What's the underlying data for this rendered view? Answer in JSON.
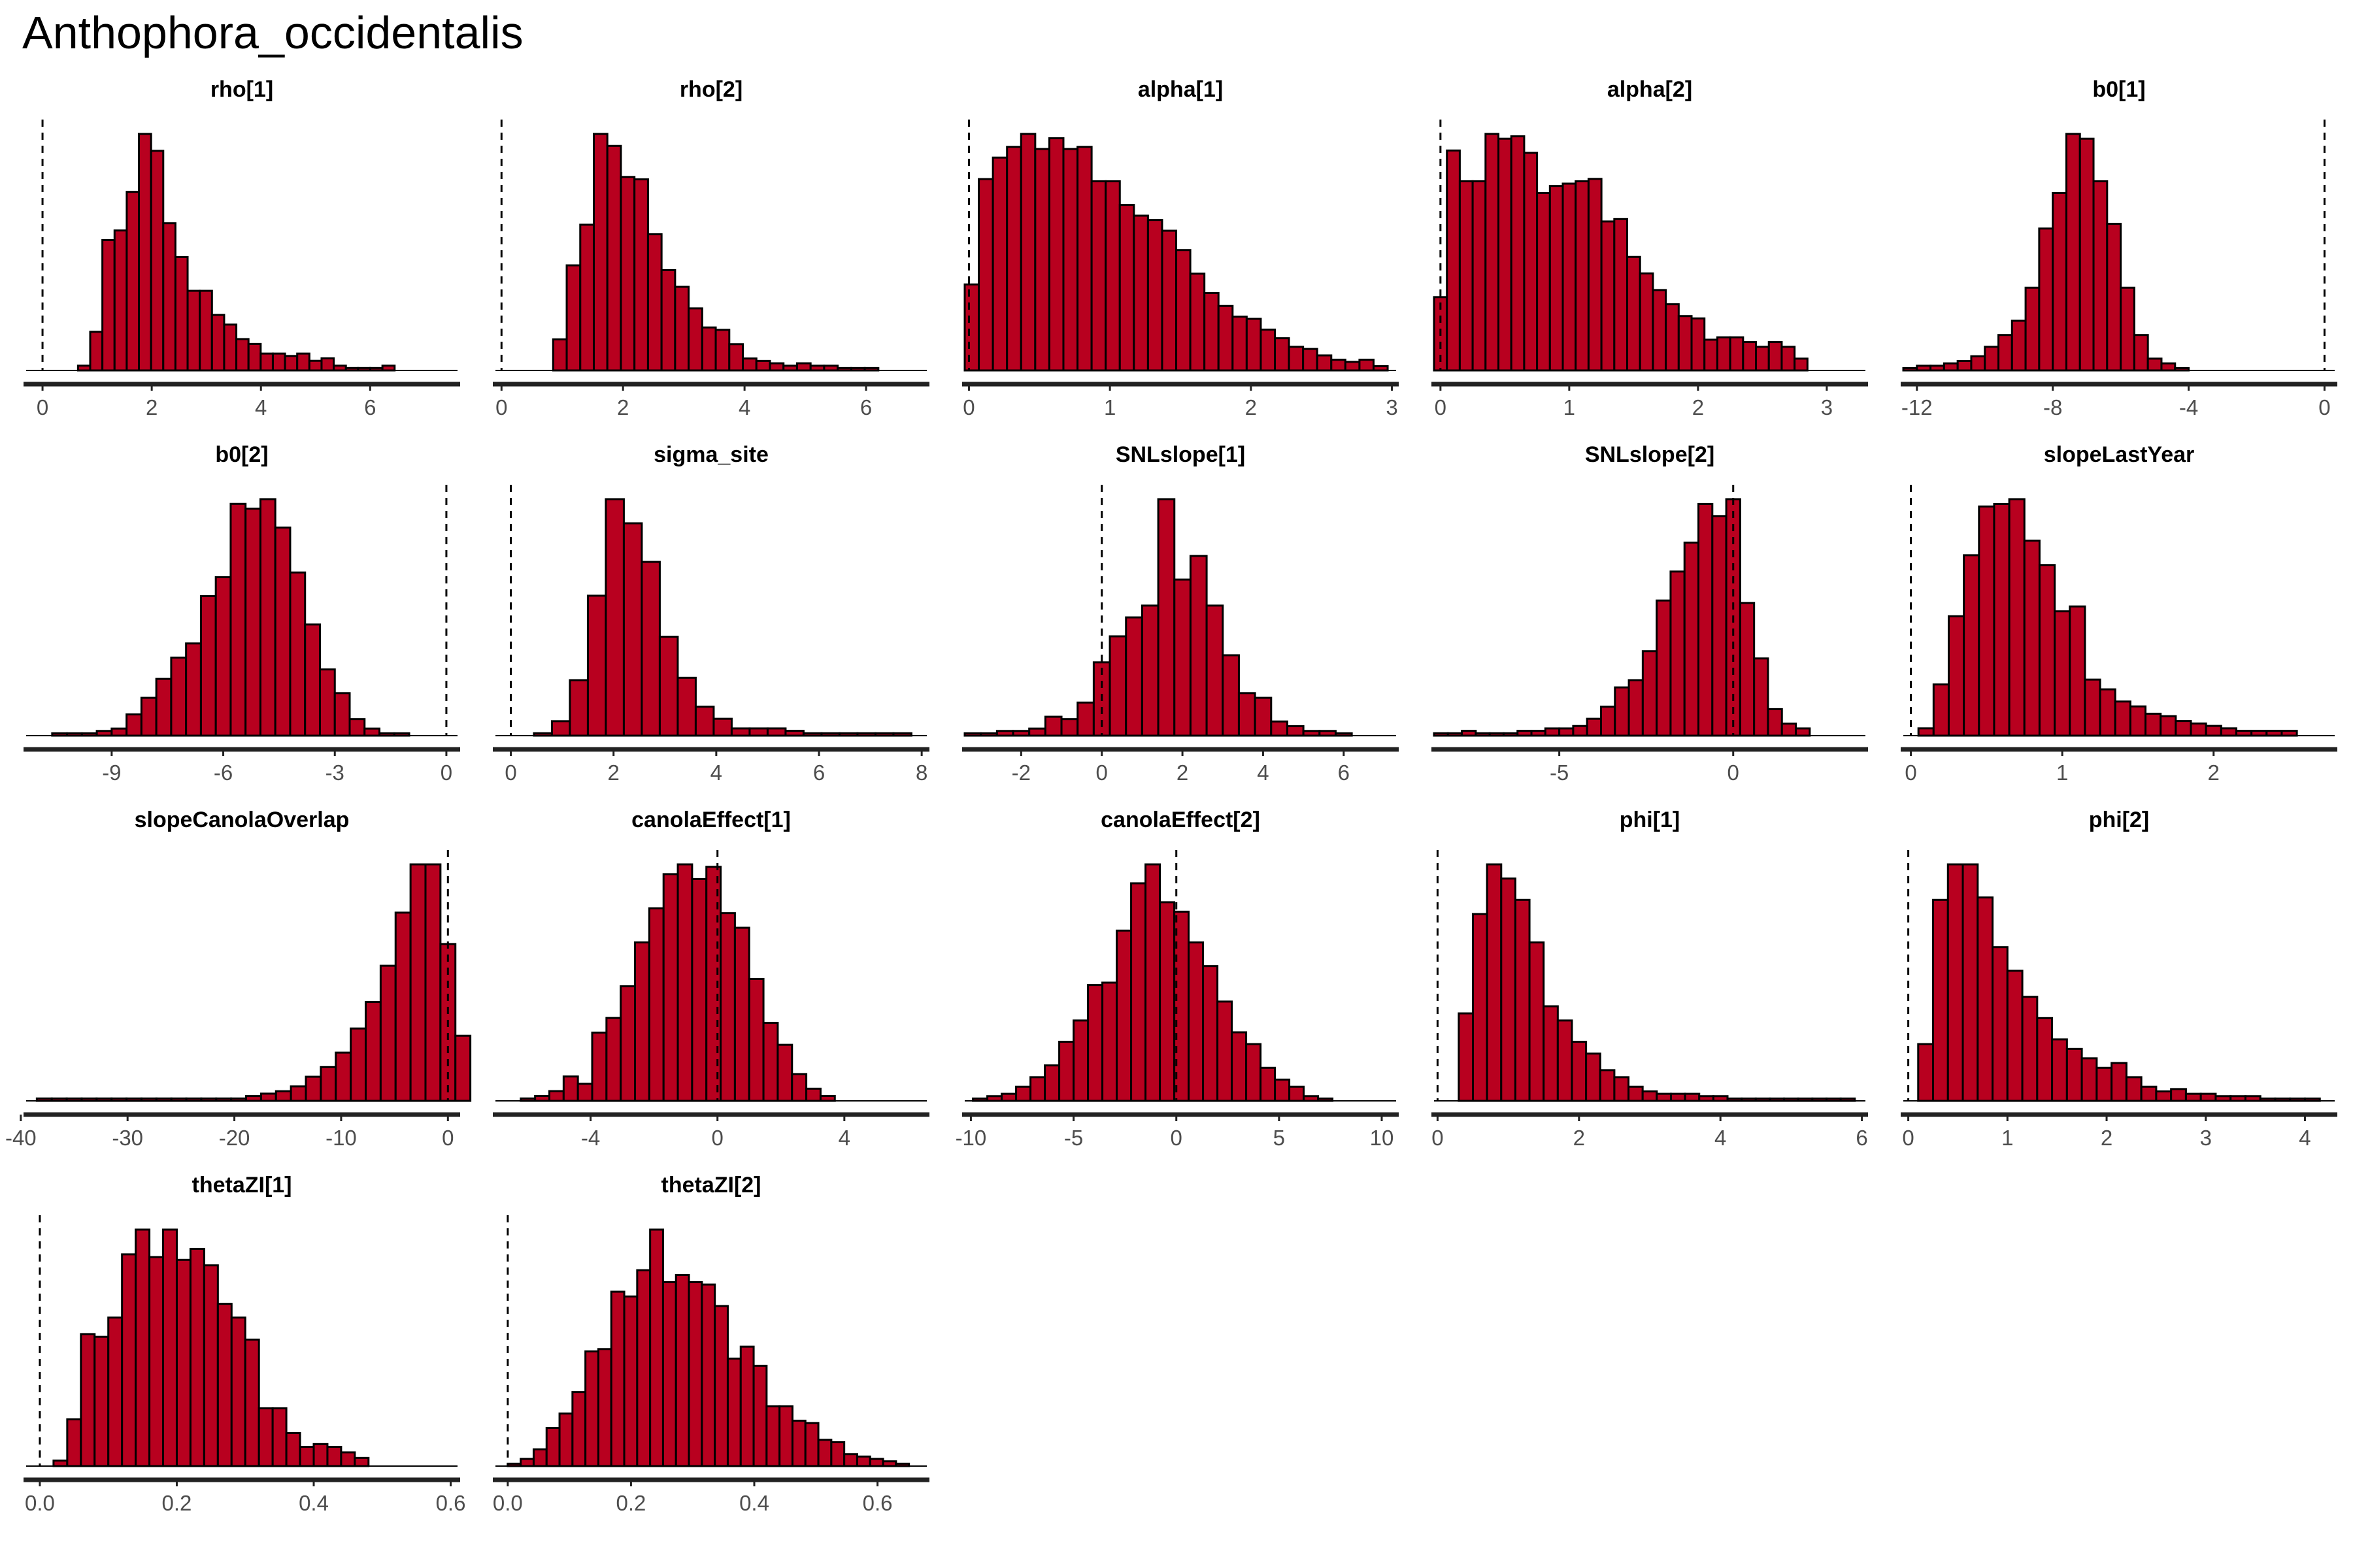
{
  "title": "Anthophora_occidentalis",
  "colors": {
    "bar_fill": "#B8001F",
    "bar_stroke": "#000000",
    "axis": "#222222",
    "tick_text": "#4d4d4d",
    "ref_line": "#000000"
  },
  "chart_data": [
    {
      "type": "bar",
      "title": "rho[1]",
      "xlim": [
        -0.3,
        7.6
      ],
      "ticks": [
        "0",
        "2",
        "4",
        "6"
      ],
      "tick_values": [
        0,
        2,
        4,
        6
      ],
      "ref": 0,
      "bin_start": 0.65,
      "bin_width": 0.223,
      "values": [
        2,
        16,
        54,
        58,
        74,
        98,
        91,
        61,
        47,
        33,
        33,
        23,
        19,
        13,
        11,
        7,
        7,
        6,
        7,
        4,
        5,
        2,
        1,
        1,
        1,
        2
      ]
    },
    {
      "type": "bar",
      "title": "rho[2]",
      "xlim": [
        -0.1,
        7.0
      ],
      "ticks": [
        "0",
        "2",
        "4",
        "6"
      ],
      "tick_values": [
        0,
        2,
        4,
        6
      ],
      "ref": 0,
      "bin_start": 0.85,
      "bin_width": 0.223,
      "values": [
        13,
        44,
        61,
        99,
        94,
        81,
        80,
        57,
        42,
        35,
        26,
        18,
        17,
        11,
        5,
        4,
        3,
        2,
        3,
        2,
        2,
        1,
        1,
        1
      ]
    },
    {
      "type": "bar",
      "title": "alpha[1]",
      "xlim": [
        -0.03,
        3.03
      ],
      "ticks": [
        "0",
        "1",
        "2",
        "3"
      ],
      "tick_values": [
        0,
        1,
        2,
        3
      ],
      "ref": 0,
      "bin_start": -0.03,
      "bin_width": 0.1,
      "values": [
        40,
        89,
        99,
        104,
        110,
        103,
        108,
        103,
        104,
        88,
        88,
        77,
        72,
        70,
        65,
        56,
        45,
        36,
        30,
        25,
        24,
        19,
        15,
        11,
        10,
        7,
        5,
        4,
        5,
        2
      ]
    },
    {
      "type": "bar",
      "title": "alpha[2]",
      "xlim": [
        -0.05,
        3.3
      ],
      "ticks": [
        "0",
        "1",
        "2",
        "3"
      ],
      "tick_values": [
        0,
        1,
        2,
        3
      ],
      "ref": 0,
      "bin_start": -0.05,
      "bin_width": 0.1,
      "values": [
        31,
        93,
        80,
        80,
        100,
        98,
        99,
        92,
        75,
        78,
        79,
        80,
        81,
        63,
        64,
        48,
        41,
        34,
        28,
        23,
        22,
        13,
        14,
        14,
        12,
        10,
        12,
        10,
        5
      ]
    },
    {
      "type": "bar",
      "title": "b0[1]",
      "xlim": [
        -12.4,
        0.3
      ],
      "ticks": [
        "-12",
        "-8",
        "-4",
        "0"
      ],
      "tick_values": [
        -12,
        -8,
        -4,
        0
      ],
      "ref": 0,
      "bin_start": -12.4,
      "bin_width": 0.4,
      "values": [
        1,
        2,
        2,
        3,
        4,
        6,
        10,
        15,
        21,
        35,
        60,
        75,
        100,
        98,
        80,
        62,
        35,
        15,
        5,
        3,
        1
      ]
    },
    {
      "type": "bar",
      "title": "b0[2]",
      "xlim": [
        -11.3,
        0.3
      ],
      "ticks": [
        "-9",
        "-6",
        "-3",
        "0"
      ],
      "tick_values": [
        -9,
        -6,
        -3,
        0
      ],
      "ref": 0,
      "bin_start": -10.6,
      "bin_width": 0.4,
      "values": [
        1,
        1,
        1,
        2,
        3,
        9,
        16,
        24,
        33,
        39,
        59,
        67,
        98,
        96,
        100,
        88,
        69,
        47,
        28,
        18,
        7,
        3,
        1,
        1
      ]
    },
    {
      "type": "bar",
      "title": "sigma_site",
      "xlim": [
        -0.3,
        8.1
      ],
      "ticks": [
        "0",
        "2",
        "4",
        "6",
        "8"
      ],
      "tick_values": [
        0,
        2,
        4,
        6,
        8
      ],
      "ref": 0,
      "bin_start": 0.45,
      "bin_width": 0.35,
      "values": [
        1,
        6,
        23,
        58,
        98,
        88,
        72,
        41,
        24,
        12,
        7,
        3,
        3,
        3,
        2,
        1,
        1,
        1,
        1,
        1,
        1
      ]
    },
    {
      "type": "bar",
      "title": "SNLslope[1]",
      "xlim": [
        -3.4,
        7.3
      ],
      "ticks": [
        "-2",
        "0",
        "2",
        "4",
        "6"
      ],
      "tick_values": [
        -2,
        0,
        2,
        4,
        6
      ],
      "ref": 0,
      "bin_start": -3.4,
      "bin_width": 0.4,
      "values": [
        1,
        1,
        2,
        2,
        3,
        8,
        7,
        14,
        31,
        42,
        50,
        55,
        100,
        66,
        76,
        55,
        34,
        18,
        16,
        6,
        4,
        2,
        2,
        1
      ]
    },
    {
      "type": "bar",
      "title": "SNLslope[2]",
      "xlim": [
        -8.6,
        3.8
      ],
      "ticks": [
        "-5",
        "0"
      ],
      "tick_values": [
        -5,
        0
      ],
      "ref": 0,
      "bin_start": -8.6,
      "bin_width": 0.4,
      "values": [
        1,
        1,
        2,
        1,
        1,
        1,
        2,
        2,
        3,
        3,
        4,
        7,
        12,
        20,
        23,
        35,
        56,
        68,
        80,
        96,
        91,
        98,
        55,
        32,
        11,
        5,
        3
      ]
    },
    {
      "type": "bar",
      "title": "slopeLastYear",
      "xlim": [
        -0.05,
        2.8
      ],
      "ticks": [
        "0",
        "1",
        "2"
      ],
      "tick_values": [
        0,
        1,
        2
      ],
      "ref": 0,
      "bin_start": 0.05,
      "bin_width": 0.1,
      "values": [
        3,
        21,
        49,
        74,
        94,
        95,
        97,
        80,
        70,
        51,
        53,
        23,
        19,
        14,
        12,
        9,
        8,
        6,
        5,
        4,
        3,
        2,
        2,
        2,
        2
      ]
    },
    {
      "type": "bar",
      "title": "slopeCanolaOverlap",
      "xlim": [
        -39.5,
        0.9
      ],
      "ticks": [
        "-40",
        "-30",
        "-20",
        "-10",
        "0"
      ],
      "tick_values": [
        -40,
        -30,
        -20,
        -10,
        0
      ],
      "ref": 0,
      "bin_start": -38.5,
      "bin_width": 1.4,
      "values": [
        1,
        1,
        1,
        1,
        1,
        1,
        1,
        1,
        1,
        1,
        1,
        1,
        1,
        1,
        2,
        3,
        4,
        6,
        10,
        14,
        20,
        30,
        41,
        56,
        78,
        98,
        98,
        65,
        27
      ]
    },
    {
      "type": "bar",
      "title": "canolaEffect[1]",
      "xlim": [
        -7.0,
        6.6
      ],
      "ticks": [
        "-4",
        "0",
        "4"
      ],
      "tick_values": [
        -4,
        0,
        4
      ],
      "ref": 0,
      "bin_start": -6.2,
      "bin_width": 0.45,
      "values": [
        1,
        2,
        4,
        10,
        7,
        28,
        34,
        47,
        65,
        79,
        93,
        97,
        91,
        96,
        77,
        71,
        50,
        32,
        23,
        11,
        5,
        2
      ]
    },
    {
      "type": "bar",
      "title": "canolaEffect[2]",
      "xlim": [
        -10.3,
        10.7
      ],
      "ticks": [
        "-10",
        "-5",
        "0",
        "5",
        "10"
      ],
      "tick_values": [
        -10,
        -5,
        0,
        5,
        10
      ],
      "ref": 0,
      "bin_start": -9.9,
      "bin_width": 0.7,
      "values": [
        1,
        2,
        3,
        6,
        10,
        15,
        25,
        34,
        49,
        50,
        72,
        92,
        100,
        84,
        80,
        67,
        57,
        42,
        29,
        24,
        14,
        9,
        6,
        2,
        1
      ]
    },
    {
      "type": "bar",
      "title": "phi[1]",
      "xlim": [
        -0.05,
        6.05
      ],
      "ticks": [
        "0",
        "2",
        "4",
        "6"
      ],
      "tick_values": [
        0,
        2,
        4,
        6
      ],
      "ref": 0,
      "bin_start": 0.3,
      "bin_width": 0.2,
      "values": [
        37,
        79,
        100,
        94,
        85,
        67,
        40,
        34,
        25,
        20,
        13,
        10,
        6,
        4,
        3,
        3,
        3,
        2,
        2,
        1,
        1,
        1,
        1,
        1,
        1,
        1,
        1,
        1
      ]
    },
    {
      "type": "bar",
      "title": "phi[2]",
      "xlim": [
        -0.05,
        4.3
      ],
      "ticks": [
        "0",
        "1",
        "2",
        "3",
        "4"
      ],
      "tick_values": [
        0,
        1,
        2,
        3,
        4
      ],
      "ref": 0,
      "bin_start": 0.1,
      "bin_width": 0.15,
      "values": [
        24,
        85,
        100,
        100,
        86,
        65,
        55,
        44,
        35,
        26,
        22,
        18,
        14,
        16,
        10,
        6,
        4,
        5,
        3,
        3,
        2,
        2,
        2,
        1,
        1,
        1,
        1
      ]
    },
    {
      "type": "bar",
      "title": "thetaZI[1]",
      "xlim": [
        -0.02,
        0.61
      ],
      "ticks": [
        "0.0",
        "0.2",
        "0.4",
        "0.6"
      ],
      "tick_values": [
        0,
        0.2,
        0.4,
        0.6
      ],
      "ref": 0,
      "bin_start": 0.0,
      "bin_width": 0.02,
      "values": [
        0,
        2,
        17,
        48,
        47,
        54,
        77,
        86,
        76,
        86,
        75,
        79,
        73,
        59,
        54,
        46,
        21,
        21,
        12,
        7,
        8,
        7,
        5,
        3
      ]
    },
    {
      "type": "bar",
      "title": "thetaZI[2]",
      "xlim": [
        -0.02,
        0.68
      ],
      "ticks": [
        "0.0",
        "0.2",
        "0.4",
        "0.6"
      ],
      "tick_values": [
        0,
        0.2,
        0.4,
        0.6
      ],
      "ref": 0,
      "bin_start": 0.0,
      "bin_width": 0.021,
      "values": [
        1,
        3,
        7,
        16,
        22,
        31,
        48,
        49,
        73,
        71,
        82,
        99,
        77,
        80,
        77,
        76,
        67,
        45,
        50,
        42,
        25,
        25,
        19,
        18,
        11,
        10,
        5,
        4,
        3,
        2,
        1
      ]
    }
  ]
}
